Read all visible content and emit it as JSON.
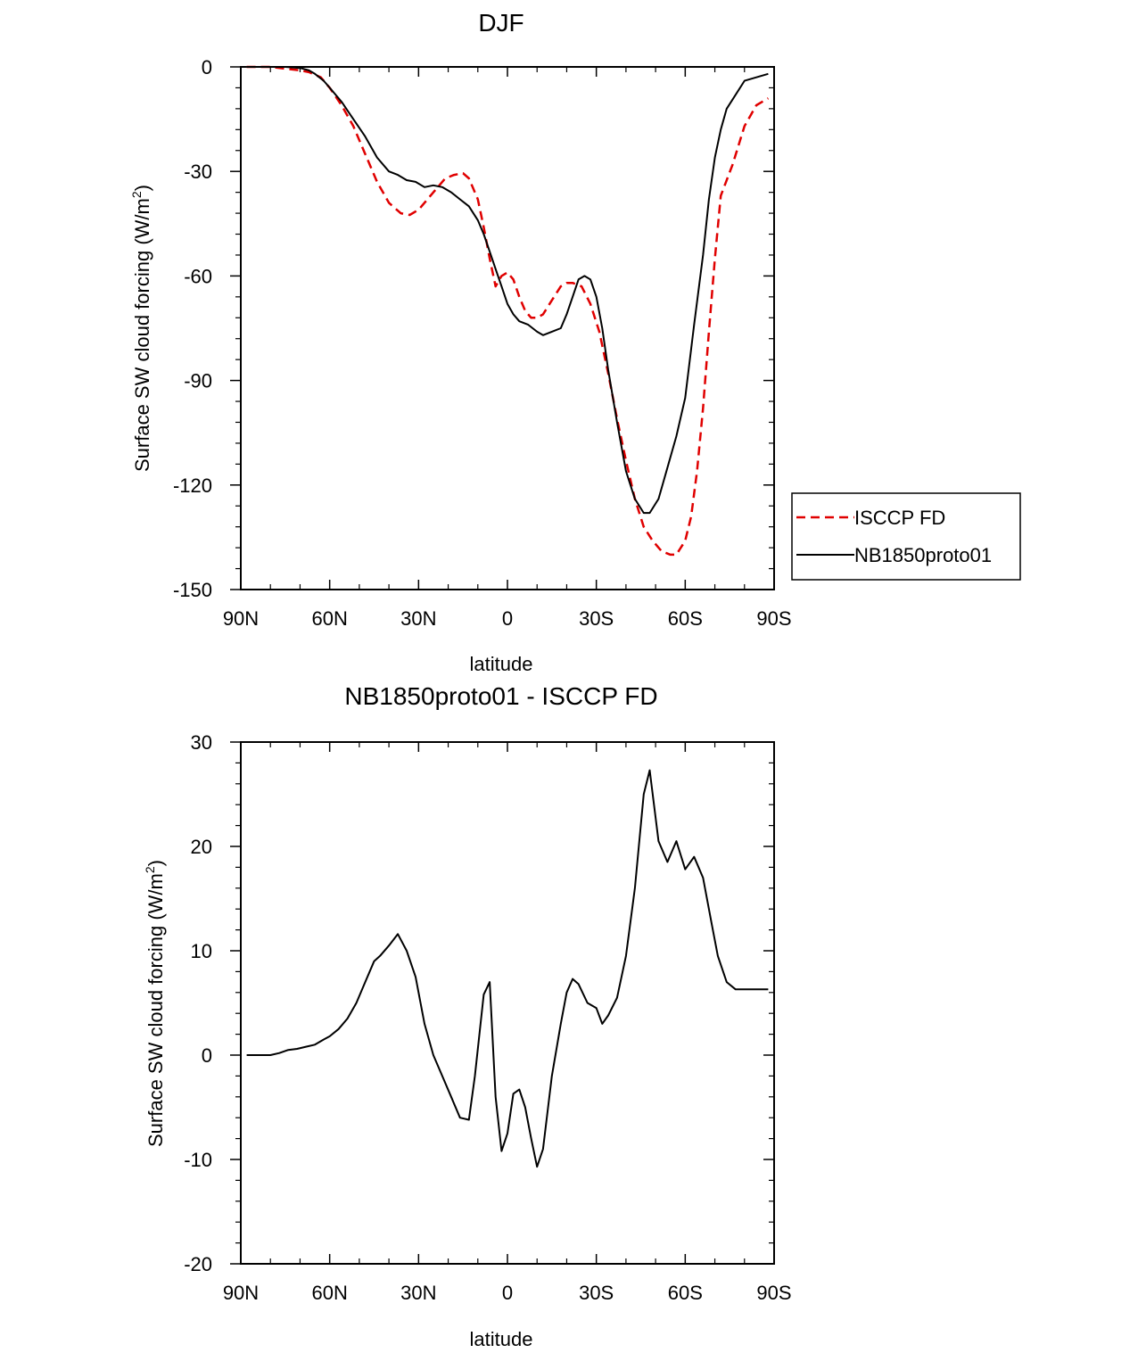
{
  "chart_data": [
    {
      "type": "line",
      "title": "DJF",
      "xlabel": "latitude",
      "ylabel": "Surface SW cloud forcing (W/m",
      "ylabel_sup": "2",
      "ylabel_close": ")",
      "xlim": [
        -90,
        90
      ],
      "ylim": [
        -150,
        0
      ],
      "xticks": [
        -90,
        -60,
        -30,
        0,
        30,
        60,
        90
      ],
      "xtick_labels": [
        "90N",
        "60N",
        "30N",
        "0",
        "30S",
        "60S",
        "90S"
      ],
      "yticks": [
        0,
        -30,
        -60,
        -90,
        -120,
        -150
      ],
      "ytick_labels": [
        "0",
        "-30",
        "-60",
        "-90",
        "-120",
        "-150"
      ],
      "legend_position": "right",
      "series": [
        {
          "name": "ISCCP FD",
          "color": "#e00000",
          "dash": "dashed",
          "x": [
            -88,
            -80,
            -75,
            -70,
            -67,
            -63,
            -60,
            -56,
            -52,
            -48,
            -44,
            -40,
            -36,
            -33,
            -30,
            -27,
            -24,
            -21,
            -18,
            -15,
            -13,
            -10,
            -8,
            -6,
            -4,
            -2,
            0,
            2,
            4,
            6,
            8,
            10,
            12,
            15,
            18,
            20,
            22,
            25,
            28,
            31,
            34,
            37,
            40,
            43,
            46,
            49,
            52,
            55,
            57,
            60,
            62,
            64,
            66,
            68,
            70,
            72,
            76,
            80,
            84,
            88
          ],
          "y": [
            0,
            0,
            -0.5,
            -1,
            -1.5,
            -3,
            -6,
            -11,
            -17,
            -25,
            -33,
            -39,
            -42,
            -42.5,
            -41,
            -38,
            -35,
            -32,
            -31,
            -30.5,
            -32,
            -38,
            -46,
            -55,
            -63,
            -60,
            -59,
            -61,
            -66,
            -70,
            -72,
            -72,
            -71,
            -67,
            -63,
            -62,
            -62,
            -63,
            -68,
            -76,
            -88,
            -101,
            -113,
            -124,
            -132,
            -136,
            -139,
            -140,
            -140,
            -136,
            -129,
            -116,
            -98,
            -76,
            -55,
            -37,
            -28,
            -17,
            -11,
            -9
          ]
        },
        {
          "name": "NB1850proto01",
          "color": "#000000",
          "dash": "solid",
          "x": [
            -88,
            -80,
            -75,
            -70,
            -67,
            -65,
            -62,
            -60,
            -56,
            -52,
            -48,
            -44,
            -40,
            -37,
            -34,
            -31,
            -28,
            -25,
            -22,
            -19,
            -16,
            -13,
            -10,
            -8,
            -6,
            -4,
            -2,
            0,
            2,
            4,
            7,
            10,
            12,
            15,
            18,
            20,
            22,
            24,
            26,
            28,
            30,
            32,
            34,
            37,
            40,
            43,
            46,
            48,
            51,
            54,
            57,
            60,
            63,
            66,
            68,
            70,
            72,
            74,
            77,
            80,
            84,
            88
          ],
          "y": [
            0,
            0,
            0,
            -0.3,
            -1,
            -2,
            -4,
            -6,
            -10,
            -15,
            -20,
            -26,
            -30,
            -31,
            -32.5,
            -33,
            -34.5,
            -34,
            -34.5,
            -36,
            -38,
            -40,
            -44,
            -48,
            -53,
            -58,
            -63,
            -68,
            -71,
            -73,
            -74,
            -76,
            -77,
            -76,
            -75,
            -71,
            -66,
            -61,
            -60,
            -61,
            -66,
            -75,
            -87,
            -102,
            -116,
            -124,
            -128,
            -128,
            -124,
            -115,
            -106,
            -95,
            -74,
            -54,
            -38,
            -26,
            -18,
            -12,
            -8,
            -4,
            -3,
            -2
          ]
        }
      ]
    },
    {
      "type": "line",
      "title": "NB1850proto01 - ISCCP FD",
      "xlabel": "latitude",
      "ylabel": "Surface SW cloud forcing (W/m",
      "ylabel_sup": "2",
      "ylabel_close": ")",
      "xlim": [
        -90,
        90
      ],
      "ylim": [
        -20,
        30
      ],
      "xticks": [
        -90,
        -60,
        -30,
        0,
        30,
        60,
        90
      ],
      "xtick_labels": [
        "90N",
        "60N",
        "30N",
        "0",
        "30S",
        "60S",
        "90S"
      ],
      "yticks": [
        30,
        20,
        10,
        0,
        -10,
        -20
      ],
      "ytick_labels": [
        "30",
        "20",
        "10",
        "0",
        "-10",
        "-20"
      ],
      "series": [
        {
          "name": "NB1850proto01 - ISCCP FD",
          "color": "#000000",
          "dash": "solid",
          "x": [
            -88,
            -80,
            -77,
            -74,
            -71,
            -68,
            -65,
            -62,
            -60,
            -57,
            -54,
            -51,
            -48,
            -45,
            -43,
            -40,
            -37,
            -34,
            -31,
            -28,
            -25,
            -22,
            -19,
            -16,
            -13,
            -11,
            -8,
            -6,
            -4,
            -2,
            0,
            2,
            4,
            6,
            8,
            10,
            12,
            15,
            18,
            20,
            22,
            24,
            27,
            30,
            32,
            34,
            37,
            40,
            43,
            46,
            48,
            51,
            54,
            57,
            60,
            63,
            66,
            69,
            71,
            74,
            77,
            80,
            83,
            86,
            88
          ],
          "y": [
            0,
            0,
            0.2,
            0.5,
            0.6,
            0.8,
            1,
            1.5,
            1.8,
            2.5,
            3.5,
            5,
            7,
            9,
            9.5,
            10.5,
            11.6,
            10,
            7.5,
            3,
            0,
            -2,
            -4,
            -6,
            -6.2,
            -2,
            5.8,
            7,
            -4,
            -9.2,
            -7.5,
            -3.7,
            -3.3,
            -5,
            -8,
            -10.7,
            -9,
            -2,
            3,
            6,
            7.3,
            6.8,
            5,
            4.5,
            3,
            3.8,
            5.5,
            9.5,
            16,
            25,
            27.3,
            20.5,
            18.5,
            20.5,
            17.8,
            19,
            17,
            12.5,
            9.5,
            7,
            6.3,
            6.3,
            6.3,
            6.3,
            6.3
          ]
        }
      ]
    }
  ]
}
